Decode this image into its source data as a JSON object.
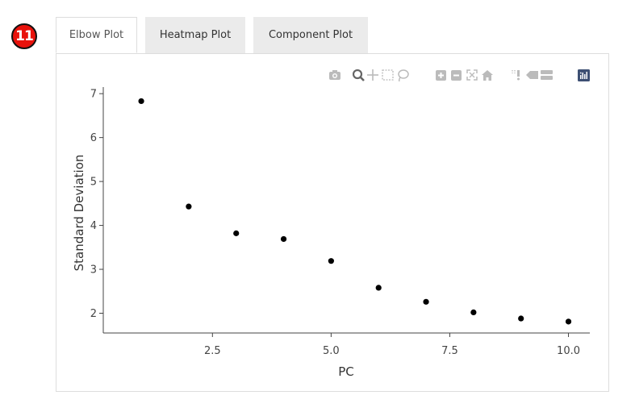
{
  "step_badge": "11",
  "tabs": [
    {
      "label": "Elbow Plot",
      "active": true
    },
    {
      "label": "Heatmap Plot",
      "active": false
    },
    {
      "label": "Component Plot",
      "active": false
    }
  ],
  "modebar": {
    "icons": [
      "camera-icon",
      "zoom-icon",
      "pan-icon",
      "box-select-icon",
      "lasso-icon",
      "zoom-in-icon",
      "zoom-out-icon",
      "autoscale-icon",
      "reset-axes-icon",
      "spike-lines-icon",
      "hover-closest-icon",
      "hover-compare-icon",
      "plotly-logo-icon"
    ],
    "icon_color": "#bbbbbb",
    "logo_color": "#3d4f73"
  },
  "chart_data": {
    "type": "scatter",
    "xlabel": "PC",
    "ylabel": "Standard Deviation",
    "x": [
      1,
      2,
      3,
      4,
      5,
      6,
      7,
      8,
      9,
      10
    ],
    "y": [
      6.83,
      4.43,
      3.82,
      3.69,
      3.19,
      2.58,
      2.26,
      2.02,
      1.88,
      1.81
    ],
    "xlim": [
      0.2,
      10.45
    ],
    "ylim": [
      1.55,
      7.15
    ],
    "xticks": [
      2.5,
      5.0,
      7.5,
      10.0
    ],
    "xtick_labels": [
      "2.5",
      "5.0",
      "7.5",
      "10.0"
    ],
    "yticks": [
      2,
      3,
      4,
      5,
      6,
      7
    ],
    "ytick_labels": [
      "2",
      "3",
      "4",
      "5",
      "6",
      "7"
    ],
    "marker_color": "#000000",
    "grid": false
  }
}
